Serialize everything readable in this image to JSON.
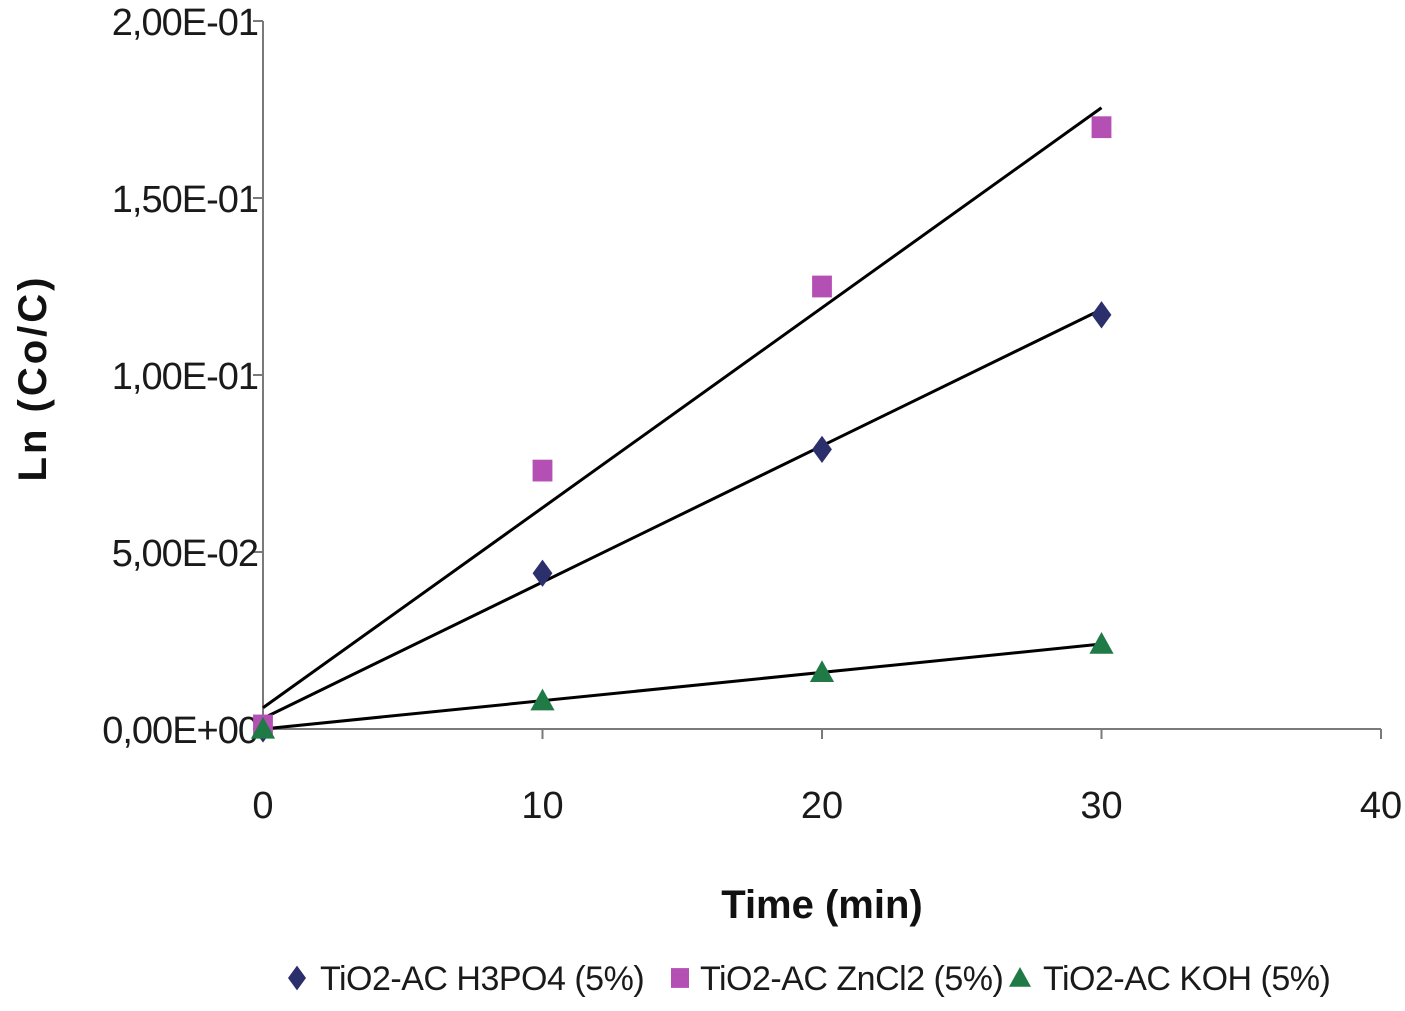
{
  "chart_data": {
    "type": "scatter",
    "title": "",
    "xlabel": "Time (min)",
    "ylabel": "Ln (Co/C)",
    "xlim": [
      0,
      40
    ],
    "ylim": [
      0,
      0.2
    ],
    "x_ticks": [
      0,
      10,
      20,
      30,
      40
    ],
    "x_tick_labels": [
      "0",
      "10",
      "20",
      "30",
      "40"
    ],
    "y_ticks": [
      0,
      0.05,
      0.1,
      0.15,
      0.2
    ],
    "y_tick_labels": [
      "0,00E+00",
      "5,00E-02",
      "1,00E-01",
      "1,50E-01",
      "2,00E-01"
    ],
    "grid": false,
    "legend_position": "bottom",
    "series": [
      {
        "name": "TiO2-AC H3PO4 (5%)",
        "marker": "diamond",
        "color": "#2b2f6b",
        "x": [
          0,
          10,
          20,
          30
        ],
        "y": [
          0.0,
          0.044,
          0.079,
          0.117
        ],
        "trendline": {
          "slope": 0.00385,
          "intercept": 0.003
        }
      },
      {
        "name": "TiO2-AC ZnCl2 (5%)",
        "marker": "square",
        "color": "#b44fb4",
        "x": [
          0,
          10,
          20,
          30
        ],
        "y": [
          0.001,
          0.073,
          0.125,
          0.17
        ],
        "trendline": {
          "slope": 0.00565,
          "intercept": 0.006
        }
      },
      {
        "name": "TiO2-AC KOH (5%)",
        "marker": "triangle",
        "color": "#1f7a45",
        "x": [
          0,
          10,
          20,
          30
        ],
        "y": [
          0.0,
          0.008,
          0.016,
          0.024
        ],
        "trendline": {
          "slope": 0.0008,
          "intercept": 0.0
        }
      }
    ]
  }
}
